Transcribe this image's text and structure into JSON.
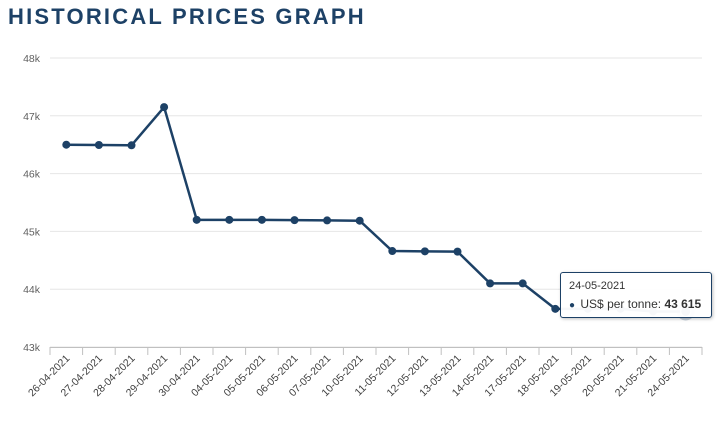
{
  "page": {
    "title": "HISTORICAL PRICES GRAPH"
  },
  "tooltip": {
    "date": "24-05-2021",
    "series_label": "US$ per tonne:",
    "value": "43 615"
  },
  "colors": {
    "line": "#1d4166",
    "grid": "#e6e6e6",
    "title": "#1d4166"
  },
  "chart_data": {
    "type": "line",
    "title": "HISTORICAL PRICES GRAPH",
    "xlabel": "",
    "ylabel": "",
    "ylim": [
      43000,
      48000
    ],
    "yticks": [
      43000,
      44000,
      45000,
      46000,
      47000,
      48000
    ],
    "ytick_labels": [
      "43k",
      "44k",
      "45k",
      "46k",
      "47k",
      "48k"
    ],
    "grid": true,
    "legend": "none",
    "categories": [
      "26-04-2021",
      "27-04-2021",
      "28-04-2021",
      "29-04-2021",
      "30-04-2021",
      "04-05-2021",
      "05-05-2021",
      "06-05-2021",
      "07-05-2021",
      "10-05-2021",
      "11-05-2021",
      "12-05-2021",
      "13-05-2021",
      "14-05-2021",
      "17-05-2021",
      "18-05-2021",
      "19-05-2021",
      "20-05-2021",
      "21-05-2021",
      "24-05-2021"
    ],
    "series": [
      {
        "name": "US$ per tonne",
        "values": [
          46500,
          46495,
          46490,
          47150,
          45200,
          45200,
          45200,
          45195,
          45190,
          45185,
          44660,
          44655,
          44650,
          44100,
          44100,
          43660,
          43660,
          43660,
          43615,
          43615
        ]
      }
    ],
    "highlight_index": 19
  }
}
